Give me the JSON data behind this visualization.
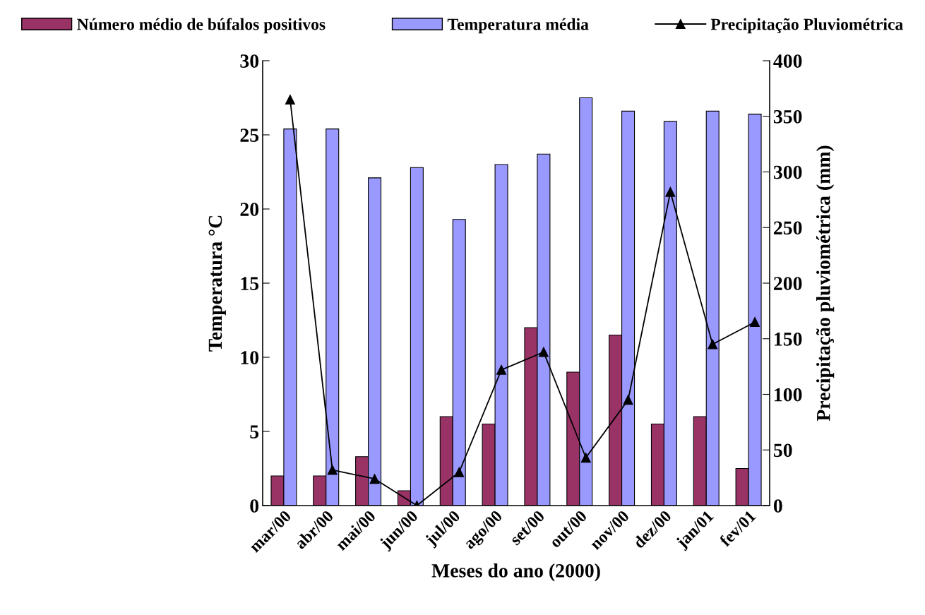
{
  "chart_data": {
    "type": "bar",
    "xlabel": "Meses do ano (2000)",
    "ylabel": "Temperatura °C",
    "y2label": "Precipitação pluviométrica (mm)",
    "categories": [
      "mar/00",
      "abr/00",
      "mai/00",
      "jun/00",
      "jul/00",
      "ago/00",
      "set/00",
      "out/00",
      "nov/00",
      "dez/00",
      "jan/01",
      "fev/01"
    ],
    "series": [
      {
        "name": "Número médio de búfalos positivos",
        "color": "#993366",
        "values": [
          2.0,
          2.0,
          3.3,
          1.0,
          6.0,
          5.5,
          12.0,
          9.0,
          11.5,
          5.5,
          6.0,
          2.5
        ]
      },
      {
        "name": "Temperatura média",
        "color": "#9999ff",
        "values": [
          25.4,
          25.4,
          22.1,
          22.8,
          19.3,
          23.0,
          23.7,
          27.5,
          26.6,
          25.9,
          26.6,
          26.4
        ]
      },
      {
        "name": "Precipitação Pluviométrica",
        "type": "line",
        "axis": "y2",
        "color": "#000000",
        "marker": "triangle",
        "values": [
          365,
          32,
          24,
          0,
          30,
          122,
          138,
          43,
          95,
          282,
          145,
          165
        ]
      }
    ],
    "ylim": [
      0,
      30
    ],
    "yticks": [
      0,
      5,
      10,
      15,
      20,
      25,
      30
    ],
    "y2lim": [
      0,
      400
    ],
    "y2ticks": [
      0,
      50,
      100,
      150,
      200,
      250,
      300,
      350,
      400
    ],
    "grid": false,
    "legend": "top"
  }
}
